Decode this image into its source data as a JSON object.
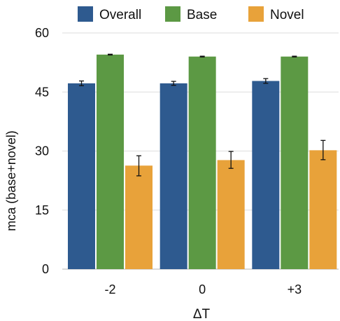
{
  "chart_data": {
    "type": "bar",
    "categories": [
      "-2",
      "0",
      "+3"
    ],
    "series": [
      {
        "name": "Overall",
        "color": "#2e5a8f",
        "values": [
          47.2,
          47.2,
          47.8
        ],
        "err_low": [
          0.6,
          0.5,
          0.6
        ],
        "err_high": [
          0.6,
          0.5,
          0.6
        ]
      },
      {
        "name": "Base",
        "color": "#5c9944",
        "values": [
          54.5,
          54.0,
          54.0
        ],
        "err_low": [
          0.1,
          0.1,
          0.1
        ],
        "err_high": [
          0.1,
          0.1,
          0.1
        ]
      },
      {
        "name": "Novel",
        "color": "#e8a23a",
        "values": [
          26.3,
          27.7,
          30.2
        ],
        "err_low": [
          2.6,
          2.1,
          2.4
        ],
        "err_high": [
          2.5,
          2.2,
          2.5
        ]
      }
    ],
    "ylabel": "mca (base+novel)",
    "xlabel": "ΔT",
    "ylim": [
      0,
      60
    ],
    "yticks": [
      "0",
      "15",
      "30",
      "45",
      "60"
    ],
    "grid": true,
    "legend_position": "top"
  }
}
